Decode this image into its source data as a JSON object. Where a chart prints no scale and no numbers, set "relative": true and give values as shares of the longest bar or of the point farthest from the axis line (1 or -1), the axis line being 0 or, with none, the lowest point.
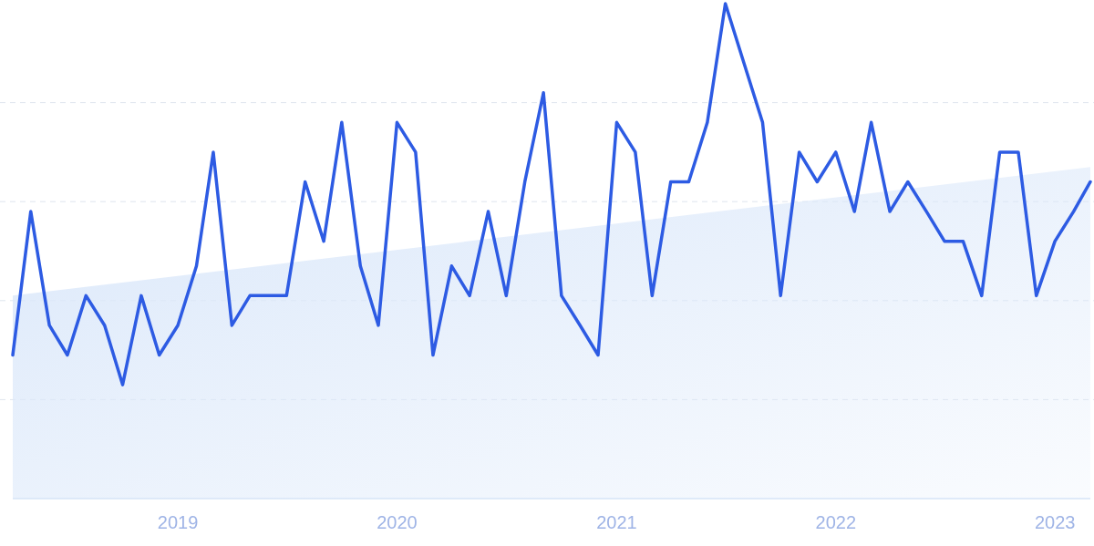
{
  "chart_data": {
    "type": "line",
    "relative": true,
    "grid": "y",
    "xlim": [
      "2018-04",
      "2023-03"
    ],
    "xticks": [
      {
        "value": "2019-01",
        "label": "2019"
      },
      {
        "value": "2020-01",
        "label": "2020"
      },
      {
        "value": "2021-01",
        "label": "2021"
      },
      {
        "value": "2022-01",
        "label": "2022"
      },
      {
        "value": "2023-01",
        "label": "2023"
      }
    ],
    "series": [
      {
        "type": "area",
        "color": "#dbe8fa",
        "x": [
          "2018-04",
          "2023-03"
        ],
        "values": [
          0.41,
          0.67
        ]
      },
      {
        "color": "#2d5be3",
        "x": [
          "2018-04",
          "2018-05",
          "2018-06",
          "2018-07",
          "2018-08",
          "2018-09",
          "2018-10",
          "2018-11",
          "2018-12",
          "2019-01",
          "2019-02",
          "2019-03",
          "2019-04",
          "2019-05",
          "2019-06",
          "2019-07",
          "2019-08",
          "2019-09",
          "2019-10",
          "2019-11",
          "2019-12",
          "2020-01",
          "2020-02",
          "2020-03",
          "2020-04",
          "2020-05",
          "2020-06",
          "2020-07",
          "2020-08",
          "2020-09",
          "2020-10",
          "2020-11",
          "2020-12",
          "2021-01",
          "2021-02",
          "2021-03",
          "2021-04",
          "2021-05",
          "2021-06",
          "2021-07",
          "2021-08",
          "2021-09",
          "2021-10",
          "2021-11",
          "2021-12",
          "2022-01",
          "2022-02",
          "2022-03",
          "2022-04",
          "2022-05",
          "2022-06",
          "2022-07",
          "2022-08",
          "2022-09",
          "2022-10",
          "2022-11",
          "2022-12",
          "2023-01",
          "2023-02",
          "2023-03"
        ],
        "values": [
          0.29,
          0.58,
          0.35,
          0.29,
          0.41,
          0.35,
          0.23,
          0.41,
          0.29,
          0.35,
          0.47,
          0.7,
          0.35,
          0.41,
          0.41,
          0.41,
          0.64,
          0.52,
          0.76,
          0.47,
          0.35,
          0.76,
          0.7,
          0.29,
          0.47,
          0.41,
          0.58,
          0.41,
          0.64,
          0.82,
          0.41,
          0.35,
          0.29,
          0.76,
          0.7,
          0.41,
          0.64,
          0.64,
          0.76,
          1,
          0.88,
          0.76,
          0.41,
          0.7,
          0.64,
          0.7,
          0.58,
          0.76,
          0.58,
          0.64,
          0.58,
          0.52,
          0.52,
          0.41,
          0.7,
          0.7,
          0.41,
          0.52,
          0.58,
          0.64
        ]
      }
    ]
  }
}
